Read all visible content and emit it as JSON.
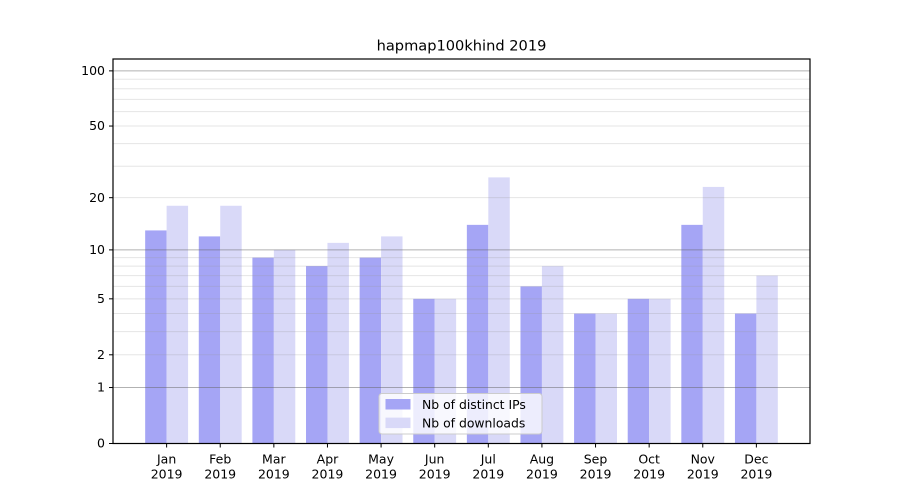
{
  "window": {
    "background": "#ffffff"
  },
  "chart_data": {
    "type": "bar",
    "title": "hapmap100khind 2019",
    "categories": [
      "Jan",
      "Feb",
      "Mar",
      "Apr",
      "May",
      "Jun",
      "Jul",
      "Aug",
      "Sep",
      "Oct",
      "Nov",
      "Dec"
    ],
    "category_year": "2019",
    "series": [
      {
        "name": "Nb of distinct IPs",
        "color": "#a5a5f5",
        "values": [
          13,
          12,
          9,
          8,
          9,
          5,
          14,
          6,
          4,
          5,
          14,
          4
        ]
      },
      {
        "name": "Nb of downloads",
        "color": "#d9d9f8",
        "values": [
          18,
          18,
          10,
          11,
          12,
          5,
          26,
          8,
          4,
          5,
          23,
          7
        ]
      }
    ],
    "xlabel": "",
    "ylabel": "",
    "yscale": "log1p",
    "ylim": [
      0,
      116
    ],
    "ytick_values": [
      0,
      1,
      2,
      5,
      10,
      20,
      50,
      100
    ],
    "ytick_labels": [
      "0",
      "1",
      "2",
      "5",
      "10",
      "20",
      "50",
      "100"
    ],
    "grid": true,
    "major_grid_values": [
      1,
      10,
      100
    ],
    "minor_grid_values": [
      2,
      3,
      4,
      5,
      6,
      7,
      8,
      9,
      20,
      30,
      40,
      50,
      60,
      70,
      80,
      90
    ],
    "legend": {
      "position": "lower center",
      "entries": [
        "Nb of distinct IPs",
        "Nb of downloads"
      ]
    },
    "colors": {
      "axis": "#000000",
      "major_grid": "#666666",
      "minor_grid": "#999999",
      "title_text": "#000000",
      "tick_text": "#000000",
      "legend_border": "#cccccc",
      "legend_background": "#ffffff",
      "legend_text": "#1a1a1a"
    }
  }
}
